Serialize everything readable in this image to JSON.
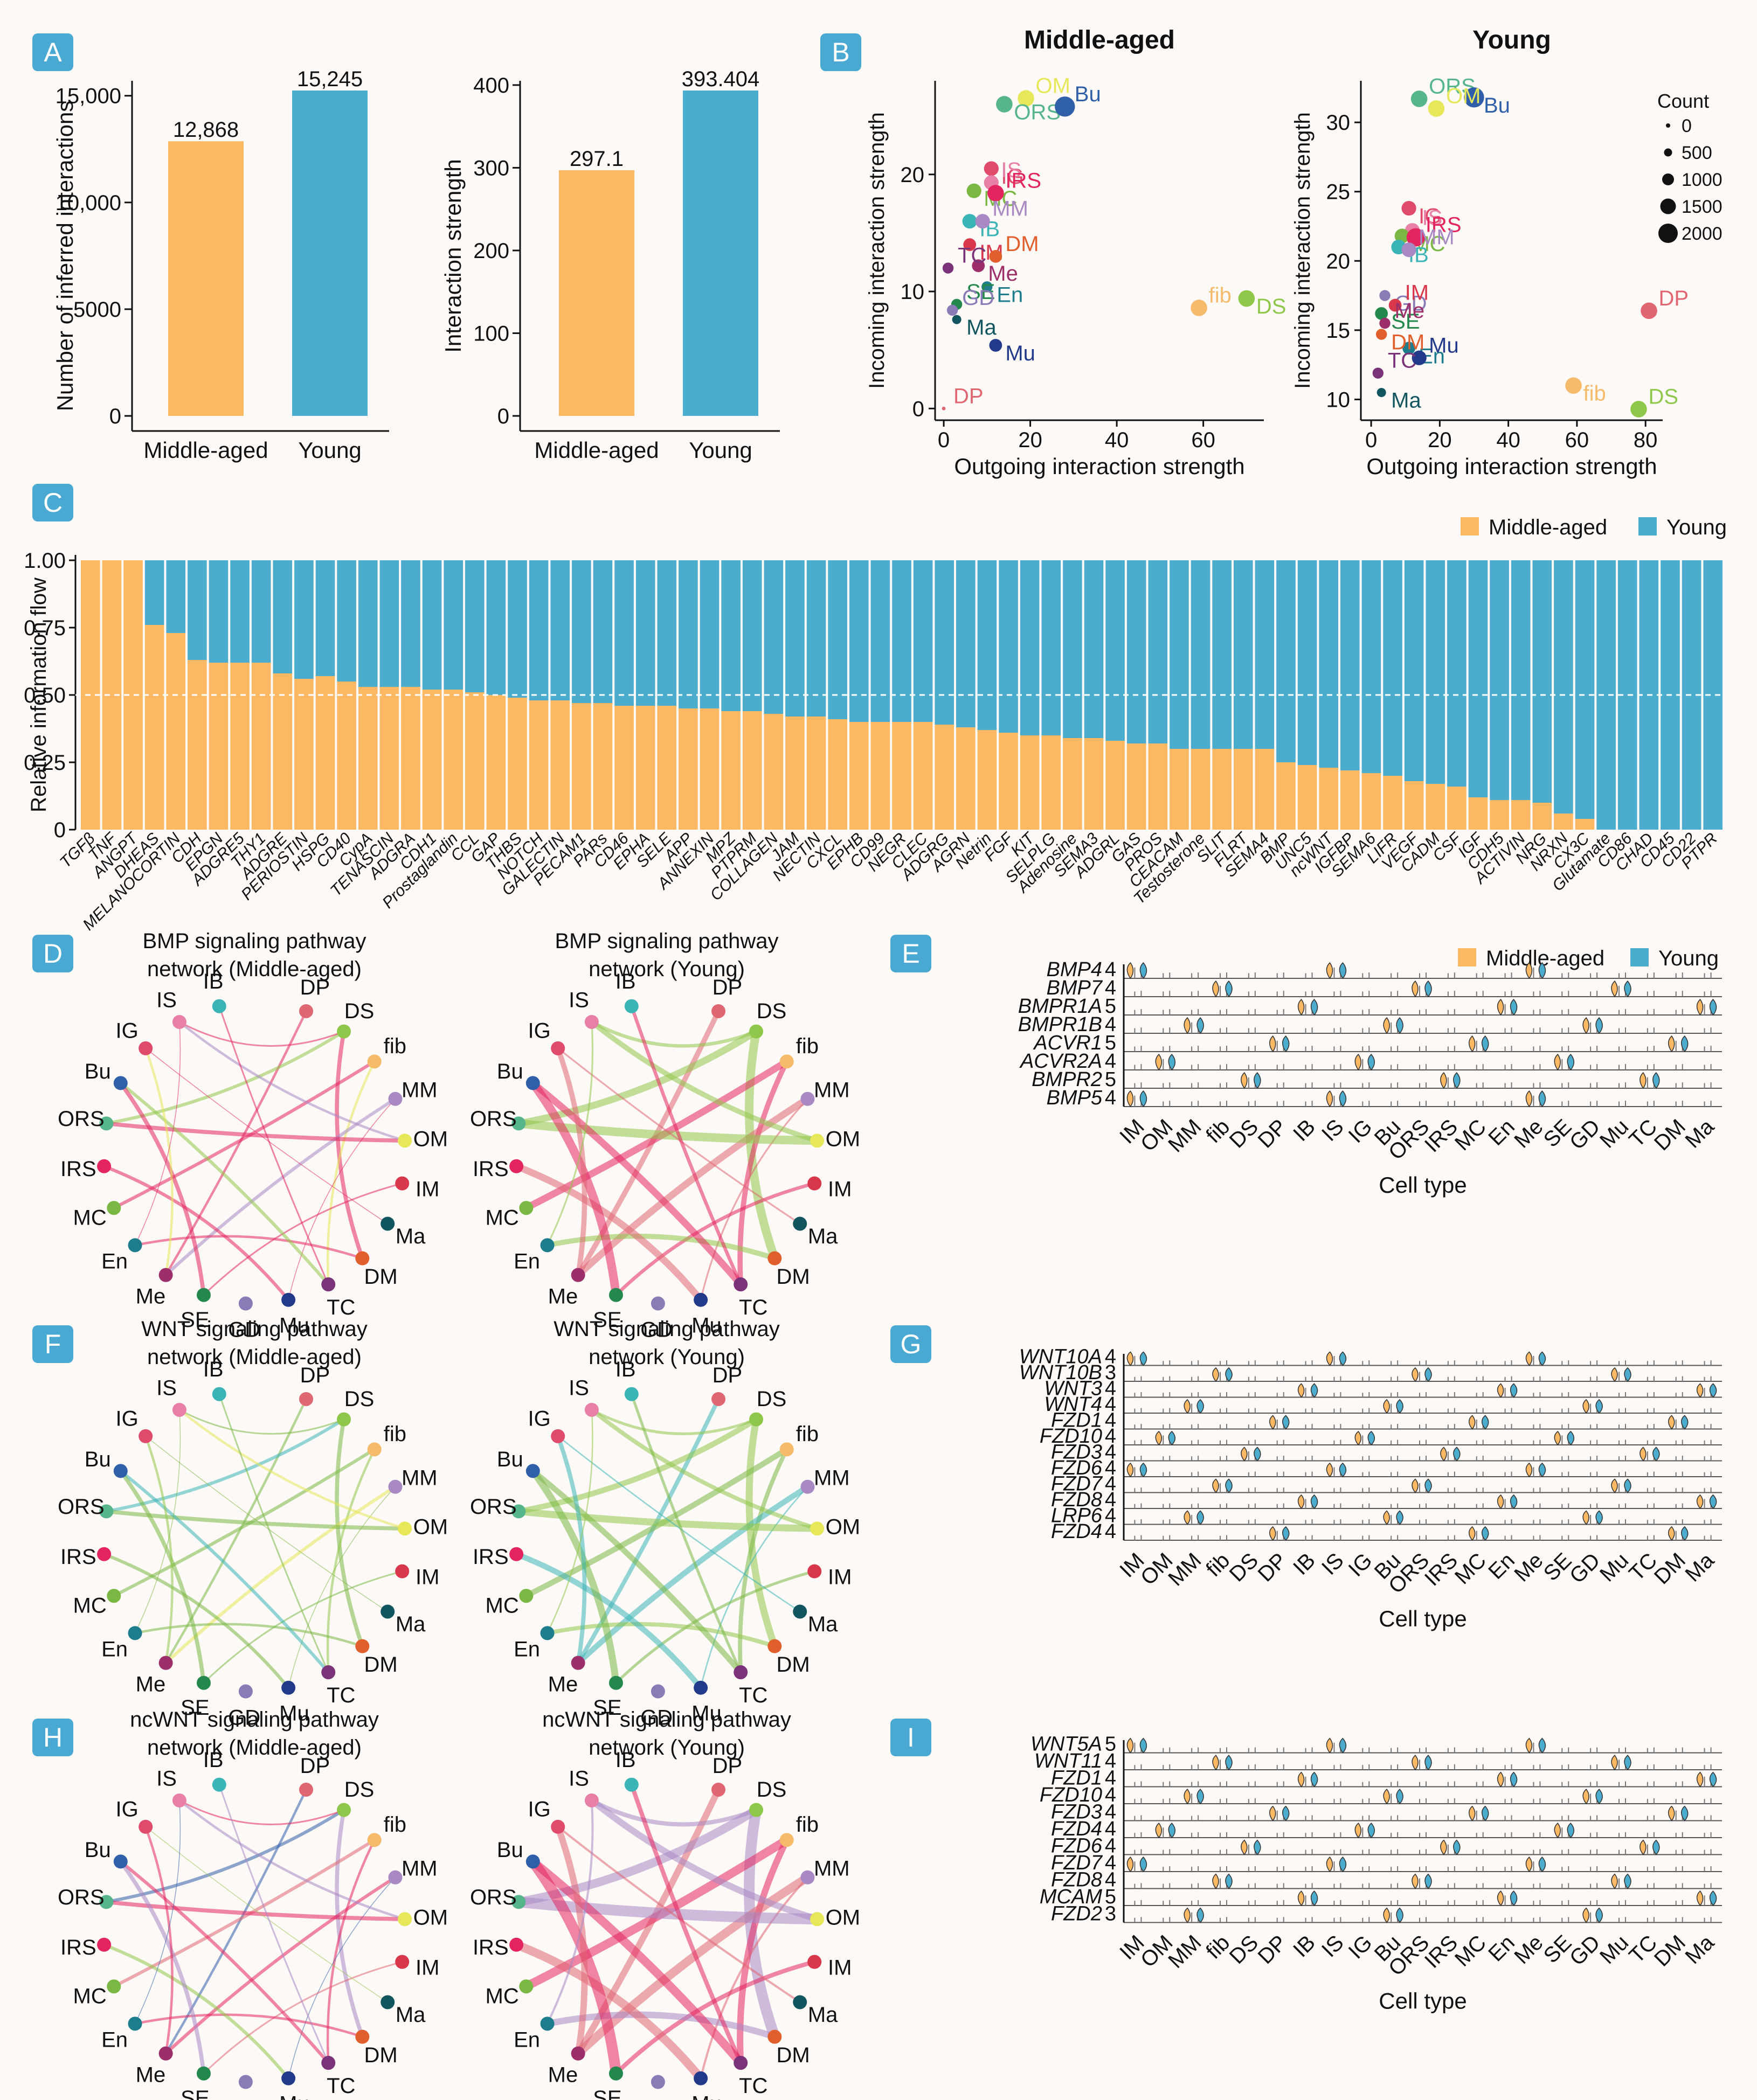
{
  "colors": {
    "middle": "#fdb863",
    "young": "#4bacce",
    "panel_label_bg": "#4aa9d2"
  },
  "panel_labels": [
    "A",
    "B",
    "C",
    "D",
    "E",
    "F",
    "G",
    "H",
    "I"
  ],
  "chart_data": [
    {
      "id": "A1",
      "type": "bar",
      "categories": [
        "Middle-aged",
        "Young"
      ],
      "values": [
        12868,
        15245
      ],
      "value_labels": [
        "12,868",
        "15,245"
      ],
      "ylabel": "Number of inferred interactions",
      "yticks": [
        "0",
        "5000",
        "10,000",
        "15,000"
      ],
      "ylim": [
        0,
        15245
      ]
    },
    {
      "id": "A2",
      "type": "bar",
      "categories": [
        "Middle-aged",
        "Young"
      ],
      "values": [
        297.1,
        393.404
      ],
      "value_labels": [
        "297.1",
        "393.404"
      ],
      "ylabel": "Interaction strength",
      "yticks": [
        "0",
        "100",
        "200",
        "300",
        "400"
      ],
      "ylim": [
        0,
        393.404
      ]
    },
    {
      "id": "B1",
      "type": "scatter",
      "title": "Middle-aged",
      "xlabel": "Outgoing interaction strength",
      "ylabel": "Incoming interaction strength",
      "xticks": [
        0,
        20,
        40,
        60
      ],
      "yticks": [
        0,
        10,
        20
      ],
      "xlim": [
        -2,
        74
      ],
      "ylim": [
        -1,
        28
      ],
      "points": [
        {
          "label": "OM",
          "x": 19,
          "y": 26.5,
          "color": "#e6e85a",
          "size": 9
        },
        {
          "label": "ORS",
          "x": 14,
          "y": 26,
          "color": "#56b58a",
          "size": 9
        },
        {
          "label": "Bu",
          "x": 28,
          "y": 25.8,
          "color": "#2f5fa8",
          "size": 11
        },
        {
          "label": "IG",
          "x": 11,
          "y": 20.5,
          "color": "#e04a6b",
          "size": 8
        },
        {
          "label": "IS",
          "x": 11,
          "y": 19.3,
          "color": "#e77fa6",
          "size": 8
        },
        {
          "label": "MC",
          "x": 7,
          "y": 18.6,
          "color": "#7ab843",
          "size": 8
        },
        {
          "label": "IRS",
          "x": 12,
          "y": 18.4,
          "color": "#e3245f",
          "size": 9
        },
        {
          "label": "IB",
          "x": 6,
          "y": 16,
          "color": "#3ab4b7",
          "size": 8
        },
        {
          "label": "MM",
          "x": 9,
          "y": 16,
          "color": "#a889c4",
          "size": 8
        },
        {
          "label": "IM",
          "x": 6,
          "y": 14,
          "color": "#d9384c",
          "size": 7
        },
        {
          "label": "DM",
          "x": 12,
          "y": 13,
          "color": "#e15f2c",
          "size": 7
        },
        {
          "label": "Me",
          "x": 8,
          "y": 12.2,
          "color": "#9c2f6a",
          "size": 7
        },
        {
          "label": "TC",
          "x": 1,
          "y": 12,
          "color": "#7a3378",
          "size": 6
        },
        {
          "label": "En",
          "x": 10,
          "y": 10.4,
          "color": "#1d7d8c",
          "size": 6
        },
        {
          "label": "SE",
          "x": 3,
          "y": 8.9,
          "color": "#23884c",
          "size": 6
        },
        {
          "label": "Ma",
          "x": 3,
          "y": 7.6,
          "color": "#11555e",
          "size": 5
        },
        {
          "label": "GD",
          "x": 2,
          "y": 8.4,
          "color": "#8a7ab5",
          "size": 6
        },
        {
          "label": "Mu",
          "x": 12,
          "y": 5.4,
          "color": "#233a8a",
          "size": 7
        },
        {
          "label": "fib",
          "x": 59,
          "y": 8.6,
          "color": "#f6ba6b",
          "size": 9
        },
        {
          "label": "DS",
          "x": 70,
          "y": 9.4,
          "color": "#8fc74a",
          "size": 9
        },
        {
          "label": "DP",
          "x": 0,
          "y": 0,
          "color": "#e06672",
          "size": 2
        }
      ]
    },
    {
      "id": "B2",
      "type": "scatter",
      "title": "Young",
      "xlabel": "Outgoing interaction strength",
      "ylabel": "Incoming interaction strength",
      "xticks": [
        0,
        20,
        40,
        60,
        80
      ],
      "yticks": [
        10,
        15,
        20,
        25,
        30
      ],
      "xlim": [
        -3,
        85
      ],
      "ylim": [
        8.5,
        33
      ],
      "legend_title": "Count",
      "legend_items": [
        "0",
        "500",
        "1000",
        "1500",
        "2000"
      ],
      "points": [
        {
          "label": "ORS",
          "x": 14,
          "y": 31.7,
          "color": "#56b58a",
          "size": 9
        },
        {
          "label": "Bu",
          "x": 30,
          "y": 31.8,
          "color": "#2f5fa8",
          "size": 11
        },
        {
          "label": "OM",
          "x": 19,
          "y": 31,
          "color": "#e6e85a",
          "size": 9
        },
        {
          "label": "IG",
          "x": 11,
          "y": 23.8,
          "color": "#e04a6b",
          "size": 8
        },
        {
          "label": "IS",
          "x": 12,
          "y": 22.2,
          "color": "#e77fa6",
          "size": 8
        },
        {
          "label": "MC",
          "x": 9,
          "y": 21.8,
          "color": "#7ab843",
          "size": 8
        },
        {
          "label": "IRS",
          "x": 13,
          "y": 21.7,
          "color": "#e3245f",
          "size": 10
        },
        {
          "label": "IB",
          "x": 8,
          "y": 21,
          "color": "#3ab4b7",
          "size": 8
        },
        {
          "label": "MM",
          "x": 11,
          "y": 20.8,
          "color": "#a889c4",
          "size": 8
        },
        {
          "label": "GD",
          "x": 4,
          "y": 17.5,
          "color": "#8a7ab5",
          "size": 6
        },
        {
          "label": "IM",
          "x": 7,
          "y": 16.8,
          "color": "#d9384c",
          "size": 7
        },
        {
          "label": "SE",
          "x": 3,
          "y": 16.2,
          "color": "#23884c",
          "size": 7
        },
        {
          "label": "Me",
          "x": 4,
          "y": 15.5,
          "color": "#9c2f6a",
          "size": 6
        },
        {
          "label": "En",
          "x": 11,
          "y": 13.7,
          "color": "#1d7d8c",
          "size": 7
        },
        {
          "label": "Mu",
          "x": 14,
          "y": 13,
          "color": "#233a8a",
          "size": 8
        },
        {
          "label": "DM",
          "x": 3,
          "y": 14.7,
          "color": "#e15f2c",
          "size": 6
        },
        {
          "label": "TC",
          "x": 2,
          "y": 11.9,
          "color": "#7a3378",
          "size": 6
        },
        {
          "label": "Ma",
          "x": 3,
          "y": 10.5,
          "color": "#11555e",
          "size": 5
        },
        {
          "label": "DP",
          "x": 81,
          "y": 16.4,
          "color": "#e06672",
          "size": 9
        },
        {
          "label": "fib",
          "x": 59,
          "y": 11,
          "color": "#f6ba6b",
          "size": 9
        },
        {
          "label": "DS",
          "x": 78,
          "y": 9.3,
          "color": "#8fc74a",
          "size": 9
        }
      ]
    },
    {
      "id": "C",
      "type": "bar",
      "stacked": true,
      "ylabel": "Relative information flow",
      "yticks": [
        "0",
        "0.25",
        "0.50",
        "0.75",
        "1.00"
      ],
      "ylim": [
        0,
        1
      ],
      "legend": [
        "Middle-aged",
        "Young"
      ],
      "categories": [
        "TGFβ",
        "TNF",
        "ANGPT",
        "DHEAS",
        "MELANOCORTIN",
        "CDH",
        "EPGN",
        "ADGRE5",
        "THY1",
        "ADGRE",
        "PERIOSTIN",
        "HSPG",
        "CD40",
        "CypA",
        "TENASCIN",
        "ADGRA",
        "CDH1",
        "Prostaglandin",
        "CCL",
        "GAP",
        "THBS",
        "NOTCH",
        "GALECTIN",
        "PECAM1",
        "PARs",
        "CD46",
        "EPHA",
        "SELE",
        "APP",
        "ANNEXIN",
        "MPZ",
        "PTPRM",
        "COLLAGEN",
        "JAM",
        "NECTIN",
        "CXCL",
        "EPHB",
        "CD99",
        "NEGR",
        "CLEC",
        "ADGRG",
        "AGRN",
        "Netrin",
        "FGF",
        "KIT",
        "SELPLG",
        "Adenosine",
        "SEMA3",
        "ADGRL",
        "GAS",
        "PROS",
        "CEACAM",
        "Testosterone",
        "SLIT",
        "FLRT",
        "SEMA4",
        "BMP",
        "UNC5",
        "ncWNT",
        "IGFBP",
        "SEMA6",
        "LIFR",
        "VEGF",
        "CADM",
        "CSF",
        "IGF",
        "CDH5",
        "ACTIVIN",
        "NRG",
        "NRXN",
        "CX3C",
        "Glutamate",
        "CD86",
        "CHAD",
        "CD45",
        "CD22",
        "PTPR"
      ],
      "middle_values": [
        1,
        1,
        1,
        0.76,
        0.73,
        0.63,
        0.62,
        0.62,
        0.62,
        0.58,
        0.56,
        0.57,
        0.55,
        0.53,
        0.53,
        0.53,
        0.52,
        0.52,
        0.51,
        0.5,
        0.49,
        0.48,
        0.48,
        0.47,
        0.47,
        0.46,
        0.46,
        0.46,
        0.45,
        0.45,
        0.44,
        0.44,
        0.43,
        0.42,
        0.42,
        0.41,
        0.4,
        0.4,
        0.4,
        0.4,
        0.39,
        0.38,
        0.37,
        0.36,
        0.35,
        0.35,
        0.34,
        0.34,
        0.33,
        0.32,
        0.32,
        0.3,
        0.3,
        0.3,
        0.3,
        0.3,
        0.25,
        0.24,
        0.23,
        0.22,
        0.21,
        0.2,
        0.18,
        0.17,
        0.16,
        0.12,
        0.11,
        0.11,
        0.1,
        0.06,
        0.04,
        0,
        0,
        0,
        0,
        0,
        0
      ]
    },
    {
      "id": "D1",
      "type": "network",
      "title_line1": "BMP signaling pathway",
      "title_line2": "network (Middle-aged)"
    },
    {
      "id": "D2",
      "type": "network",
      "title_line1": "BMP signaling pathway",
      "title_line2": "network (Young)"
    },
    {
      "id": "F1",
      "type": "network",
      "title_line1": "WNT signaling pathway",
      "title_line2": "network (Middle-aged)"
    },
    {
      "id": "F2",
      "type": "network",
      "title_line1": "WNT signaling pathway",
      "title_line2": "network (Young)"
    },
    {
      "id": "H1",
      "type": "network",
      "title_line1": "ncWNT signaling pathway",
      "title_line2": "network (Middle-aged)"
    },
    {
      "id": "H2",
      "type": "network",
      "title_line1": "ncWNT signaling pathway",
      "title_line2": "network (Young)"
    },
    {
      "id": "E",
      "type": "violin",
      "xlabel": "Cell type",
      "legend": [
        "Middle-aged",
        "Young"
      ],
      "genes": [
        "BMP4",
        "BMP7",
        "BMPR1A",
        "BMPR1B",
        "ACVR1",
        "ACVR2A",
        "BMPR2",
        "BMP5"
      ],
      "ymax": [
        "4",
        "4",
        "5",
        "4",
        "5",
        "4",
        "5",
        "4"
      ],
      "cell_types": [
        "IM",
        "OM",
        "MM",
        "fib",
        "DS",
        "DP",
        "IB",
        "IS",
        "IG",
        "Bu",
        "ORS",
        "IRS",
        "MC",
        "En",
        "Me",
        "SE",
        "GD",
        "Mu",
        "TC",
        "DM",
        "Ma"
      ]
    },
    {
      "id": "G",
      "type": "violin",
      "xlabel": "Cell type",
      "genes": [
        "WNT10A",
        "WNT10B",
        "WNT3",
        "WNT4",
        "FZD1",
        "FZD10",
        "FZD3",
        "FZD6",
        "FZD7",
        "FZD8",
        "LRP6",
        "FZD4"
      ],
      "ymax": [
        "4",
        "3",
        "4",
        "4",
        "4",
        "4",
        "4",
        "4",
        "4",
        "4",
        "4",
        "4"
      ],
      "cell_types": [
        "IM",
        "OM",
        "MM",
        "fib",
        "DS",
        "DP",
        "IB",
        "IS",
        "IG",
        "Bu",
        "ORS",
        "IRS",
        "MC",
        "En",
        "Me",
        "SE",
        "GD",
        "Mu",
        "TC",
        "DM",
        "Ma"
      ]
    },
    {
      "id": "I",
      "type": "violin",
      "xlabel": "Cell type",
      "genes": [
        "WNT5A",
        "WNT11",
        "FZD1",
        "FZD10",
        "FZD3",
        "FZD4",
        "FZD6",
        "FZD7",
        "FZD8",
        "MCAM",
        "FZD2"
      ],
      "ymax": [
        "5",
        "4",
        "4",
        "4",
        "4",
        "4",
        "4",
        "4",
        "4",
        "5",
        "3"
      ],
      "cell_types": [
        "IM",
        "OM",
        "MM",
        "fib",
        "DS",
        "DP",
        "IB",
        "IS",
        "IG",
        "Bu",
        "ORS",
        "IRS",
        "MC",
        "En",
        "Me",
        "SE",
        "GD",
        "Mu",
        "TC",
        "DM",
        "Ma"
      ]
    }
  ],
  "network_nodes": [
    {
      "label": "DP",
      "color": "#e06672"
    },
    {
      "label": "DS",
      "color": "#8fc74a"
    },
    {
      "label": "fib",
      "color": "#f6ba6b"
    },
    {
      "label": "MM",
      "color": "#a889c4"
    },
    {
      "label": "OM",
      "color": "#e6e85a"
    },
    {
      "label": "IM",
      "color": "#d9384c"
    },
    {
      "label": "Ma",
      "color": "#11555e"
    },
    {
      "label": "DM",
      "color": "#e15f2c"
    },
    {
      "label": "TC",
      "color": "#7a3378"
    },
    {
      "label": "Mu",
      "color": "#233a8a"
    },
    {
      "label": "GD",
      "color": "#8a7ab5"
    },
    {
      "label": "SE",
      "color": "#23884c"
    },
    {
      "label": "Me",
      "color": "#9c2f6a"
    },
    {
      "label": "En",
      "color": "#1d7d8c"
    },
    {
      "label": "MC",
      "color": "#7ab843"
    },
    {
      "label": "IRS",
      "color": "#e3245f"
    },
    {
      "label": "ORS",
      "color": "#56b58a"
    },
    {
      "label": "Bu",
      "color": "#2f5fa8"
    },
    {
      "label": "IG",
      "color": "#e04a6b"
    },
    {
      "label": "IS",
      "color": "#e77fa6"
    },
    {
      "label": "IB",
      "color": "#3ab4b7"
    }
  ]
}
